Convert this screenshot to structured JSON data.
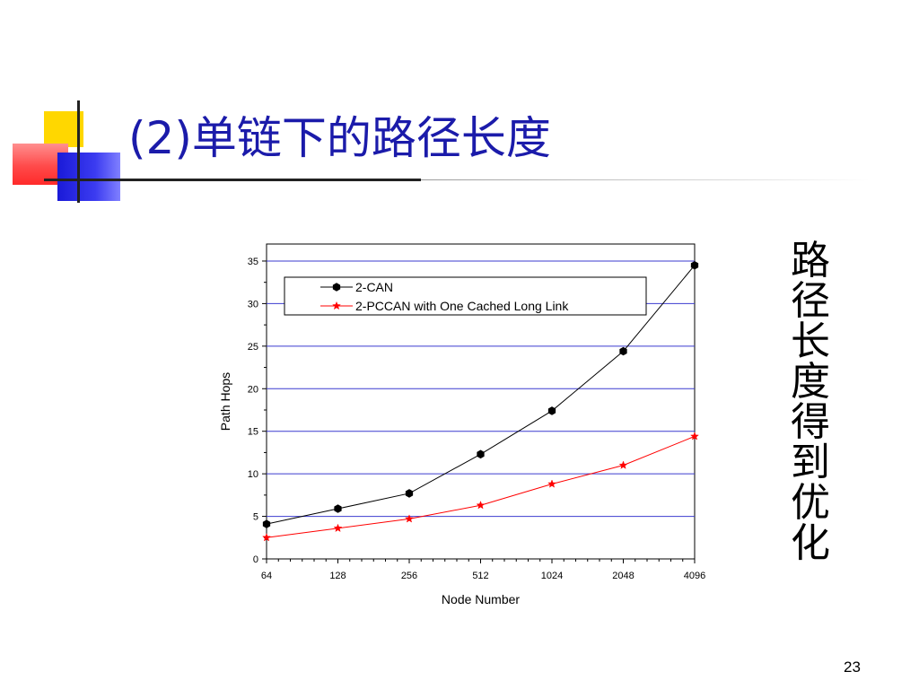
{
  "slide": {
    "title": "(2)单链下的路径长度",
    "side_text": "路径长度得到优化",
    "page_number": "23"
  },
  "colors": {
    "title": "#1b1baa",
    "gridline": "#3b3bcf",
    "series_can": "#000000",
    "series_pccan": "#ff0000"
  },
  "chart_data": {
    "type": "line",
    "x_scale": "log2",
    "xlabel": "Node Number",
    "ylabel": "Path Hops",
    "x": [
      64,
      128,
      256,
      512,
      1024,
      2048,
      4096
    ],
    "x_tick_labels": [
      "64",
      "128",
      "256",
      "512",
      "1024",
      "2048",
      "4096"
    ],
    "xlim": [
      64,
      4096
    ],
    "ylim": [
      0,
      37
    ],
    "y_ticks": [
      0,
      5,
      10,
      15,
      20,
      25,
      30,
      35
    ],
    "y_tick_labels": [
      "0",
      "5",
      "10",
      "15",
      "20",
      "25",
      "30",
      "35"
    ],
    "grid": "horizontal",
    "legend_position": "top-left",
    "series": [
      {
        "name": "2-CAN",
        "marker": "hexagon",
        "values": [
          4.1,
          5.9,
          7.7,
          12.3,
          17.4,
          24.4,
          34.5
        ]
      },
      {
        "name": "2-PCCAN with One Cached Long Link",
        "marker": "star",
        "values": [
          2.5,
          3.6,
          4.7,
          6.3,
          8.8,
          11.0,
          14.4
        ]
      }
    ]
  }
}
